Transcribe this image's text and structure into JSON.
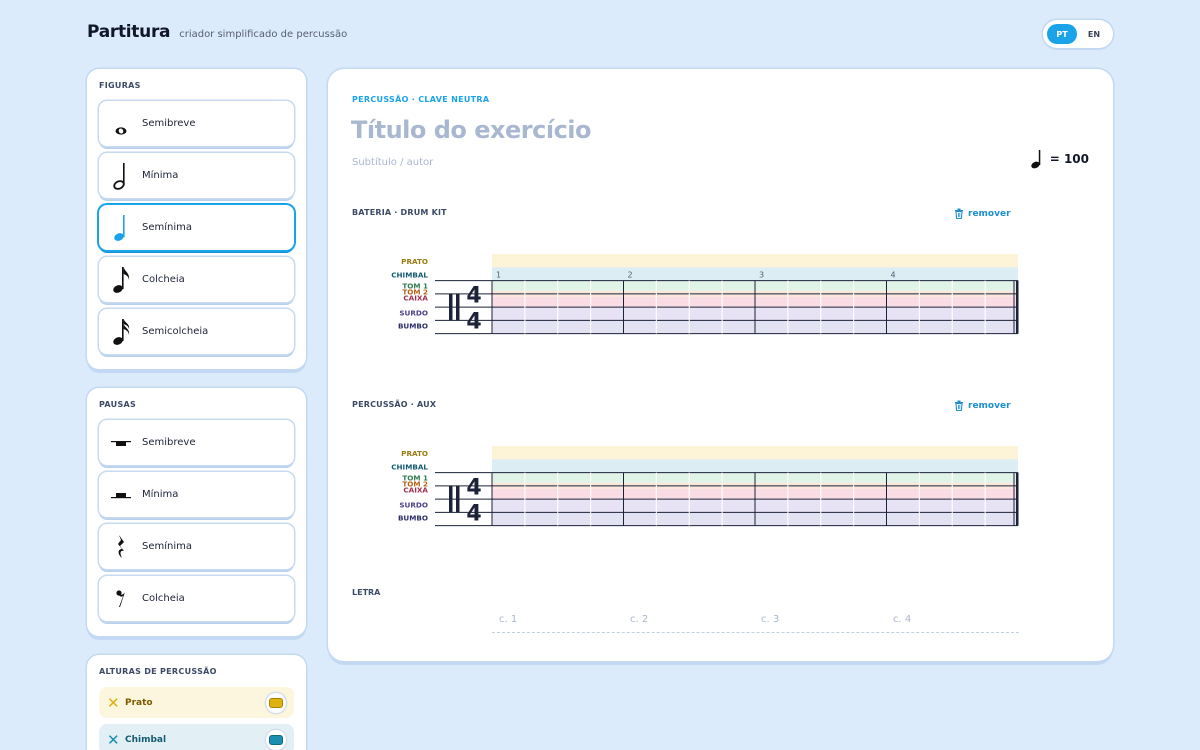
{
  "app": {
    "name": "Partitura",
    "tagline": "criador simplificado de percussão"
  },
  "lang": {
    "pt": "PT",
    "en": "EN",
    "active": "pt"
  },
  "figures": {
    "heading": "FIGURAS",
    "items": [
      {
        "label": "Semibreve",
        "icon": "whole-note-icon"
      },
      {
        "label": "Mínima",
        "icon": "half-note-icon"
      },
      {
        "label": "Semínima",
        "icon": "quarter-note-icon",
        "active": true
      },
      {
        "label": "Colcheia",
        "icon": "eighth-note-icon"
      },
      {
        "label": "Semicolcheia",
        "icon": "sixteenth-note-icon"
      }
    ]
  },
  "rests": {
    "heading": "PAUSAS",
    "items": [
      {
        "label": "Semibreve",
        "icon": "whole-rest-icon"
      },
      {
        "label": "Mínima",
        "icon": "half-rest-icon"
      },
      {
        "label": "Semínima",
        "icon": "quarter-rest-icon"
      },
      {
        "label": "Colcheia",
        "icon": "eighth-rest-icon"
      }
    ]
  },
  "pitches": {
    "heading": "ALTURAS DE PERCUSSÃO",
    "items": [
      {
        "label": "Prato",
        "color": "#e0b20f",
        "bg": "#fdf7e1",
        "text": "#7a5b00"
      },
      {
        "label": "Chimbal",
        "color": "#1a8fb0",
        "bg": "#e3f1f6",
        "text": "#145a72"
      }
    ]
  },
  "score": {
    "kicker": "PERCUSSÃO · CLAVE NEUTRA",
    "title": "Título do exercício",
    "subtitle": "Subtítulo / autor",
    "tempo": "= 100",
    "time_signature": {
      "top": "4",
      "bottom": "4"
    }
  },
  "instruments": [
    {
      "label": "BATERIA · DRUM KIT",
      "remove": "remover",
      "measure_numbers": [
        "1",
        "2",
        "3",
        "4"
      ]
    },
    {
      "label": "PERCUSSÃO · AUX",
      "remove": "remover",
      "measure_numbers": []
    }
  ],
  "lanes": [
    {
      "label": "PRATO",
      "color": "#9a7a10",
      "fill": "#fdf3d6"
    },
    {
      "label": "CHIMBAL",
      "color": "#145a72",
      "fill": "#dcedf3"
    },
    {
      "label": "TOM 1",
      "color": "#2f7d4a",
      "fill": "#dff3e6"
    },
    {
      "label": "TOM 2",
      "color": "#b4621a",
      "fill": "#fbe8dd"
    },
    {
      "label": "CAIXA",
      "color": "#a0304a",
      "fill": "#fadde4"
    },
    {
      "label": "SURDO",
      "color": "#4a3f8a",
      "fill": "#e7e3f5"
    },
    {
      "label": "BUMBO",
      "color": "#2c2f6a",
      "fill": "#e2e2f2"
    }
  ],
  "lyrics": {
    "heading": "LETRA",
    "cells": [
      "c. 1",
      "c. 2",
      "c. 3",
      "c. 4"
    ]
  }
}
